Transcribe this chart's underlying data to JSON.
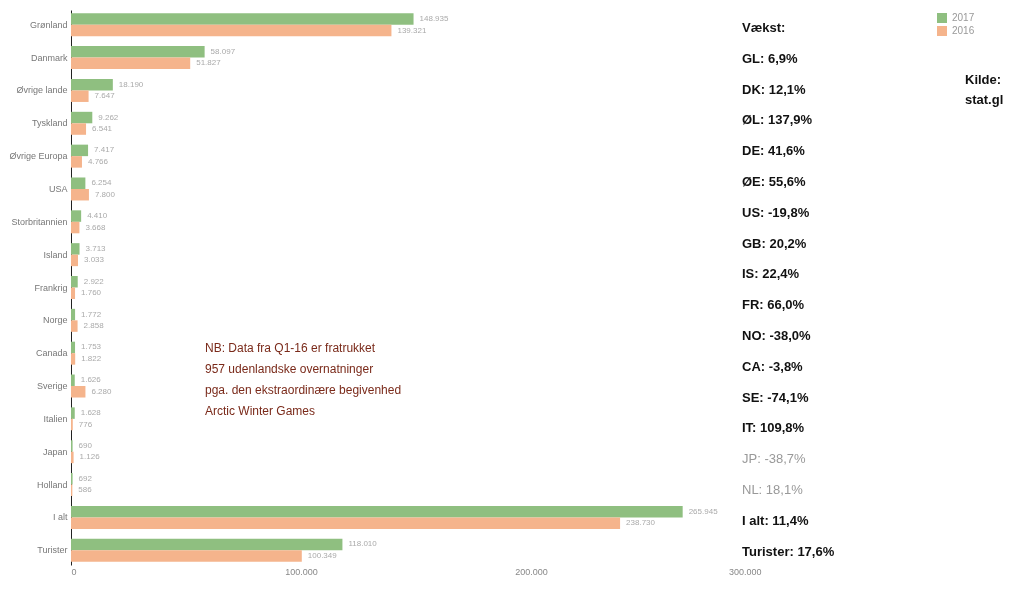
{
  "chart_data": {
    "type": "bar",
    "orientation": "horizontal",
    "categories": [
      "Grønland",
      "Danmark",
      "Øvrige lande",
      "Tyskland",
      "Øvrige Europa",
      "USA",
      "Storbritannien",
      "Island",
      "Frankrig",
      "Norge",
      "Canada",
      "Sverige",
      "Italien",
      "Japan",
      "Holland",
      "I alt",
      "Turister"
    ],
    "series": [
      {
        "name": "2017",
        "color": "#8fbf80",
        "values": [
          148935,
          58097,
          18190,
          9262,
          7417,
          6254,
          4410,
          3713,
          2922,
          1772,
          1753,
          1626,
          1628,
          690,
          692,
          265945,
          118010
        ],
        "value_labels": [
          "148.935",
          "58.097",
          "18.190",
          "9.262",
          "7.417",
          "6.254",
          "4.410",
          "3.713",
          "2.922",
          "1.772",
          "1.753",
          "1.626",
          "1.628",
          "690",
          "692",
          "265.945",
          "118.010"
        ]
      },
      {
        "name": "2016",
        "color": "#f5b48c",
        "values": [
          139321,
          51827,
          7647,
          6541,
          4766,
          7800,
          3668,
          3033,
          1760,
          2858,
          1822,
          6280,
          776,
          1126,
          586,
          238730,
          100349
        ],
        "value_labels": [
          "139.321",
          "51.827",
          "7.647",
          "6.541",
          "4.766",
          "7.800",
          "3.668",
          "3.033",
          "1.760",
          "2.858",
          "1.822",
          "6.280",
          "776",
          "1.126",
          "586",
          "238.730",
          "100.349"
        ]
      }
    ],
    "xlim": [
      0,
      300000
    ],
    "xticks": [
      {
        "value": 0,
        "label": "0"
      },
      {
        "value": 100000,
        "label": "100.000"
      },
      {
        "value": 200000,
        "label": "200.000"
      },
      {
        "value": 300000,
        "label": "300.000"
      }
    ],
    "legend": "top right",
    "annotations": [
      "Vækst:",
      "GL: 6,9%",
      "DK: 12,1%",
      "ØL: 137,9%",
      "DE: 41,6%",
      "ØE: 55,6%",
      "US: -19,8%",
      "GB: 20,2%",
      "IS: 22,4%",
      "FR: 66,0%",
      "NO: -38,0%",
      "CA: -3,8%",
      "SE: -74,1%",
      "IT: 109,8%",
      "JP: -38,7%",
      "NL: 18,1%",
      "I alt: 11,4%",
      "Turister: 17,6%",
      "NB: Data fra Q1-16 er fratrukket\n957 udenlandske overnatninger\npga. den ekstraordinære begivenhed\nArctic Winter Games",
      "Kilde:\nstat.gl"
    ]
  }
}
